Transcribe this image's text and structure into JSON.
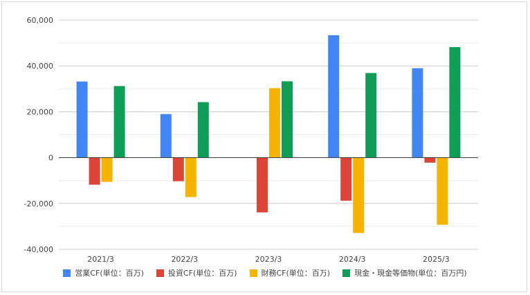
{
  "chart_data": {
    "type": "bar",
    "categories": [
      "2021/3",
      "2022/3",
      "2023/3",
      "2024/3",
      "2025/3"
    ],
    "series": [
      {
        "name": "営業CF(単位：百万)",
        "color": "#4285f4",
        "values": [
          33200,
          19000,
          0,
          53400,
          39000
        ]
      },
      {
        "name": "投資CF(単位：百万)",
        "color": "#db4437",
        "values": [
          -11800,
          -10300,
          -23900,
          -18800,
          -2200
        ]
      },
      {
        "name": "財務CF(単位：百万)",
        "color": "#f4b400",
        "values": [
          -10600,
          -17200,
          30300,
          -32900,
          -29300
        ]
      },
      {
        "name": "現金・現金等価物(単位：百万円)",
        "color": "#0f9d58",
        "values": [
          31200,
          24200,
          33300,
          36900,
          48200
        ]
      }
    ],
    "yticks": [
      "60,000",
      "40,000",
      "20,000",
      "0",
      "-20,000",
      "-40,000"
    ],
    "ytick_values": [
      60000,
      40000,
      20000,
      0,
      -20000,
      -40000
    ],
    "ylim": [
      -40000,
      60000
    ],
    "grid": true,
    "legend_position": "bottom",
    "title": "",
    "xlabel": "",
    "ylabel": ""
  }
}
